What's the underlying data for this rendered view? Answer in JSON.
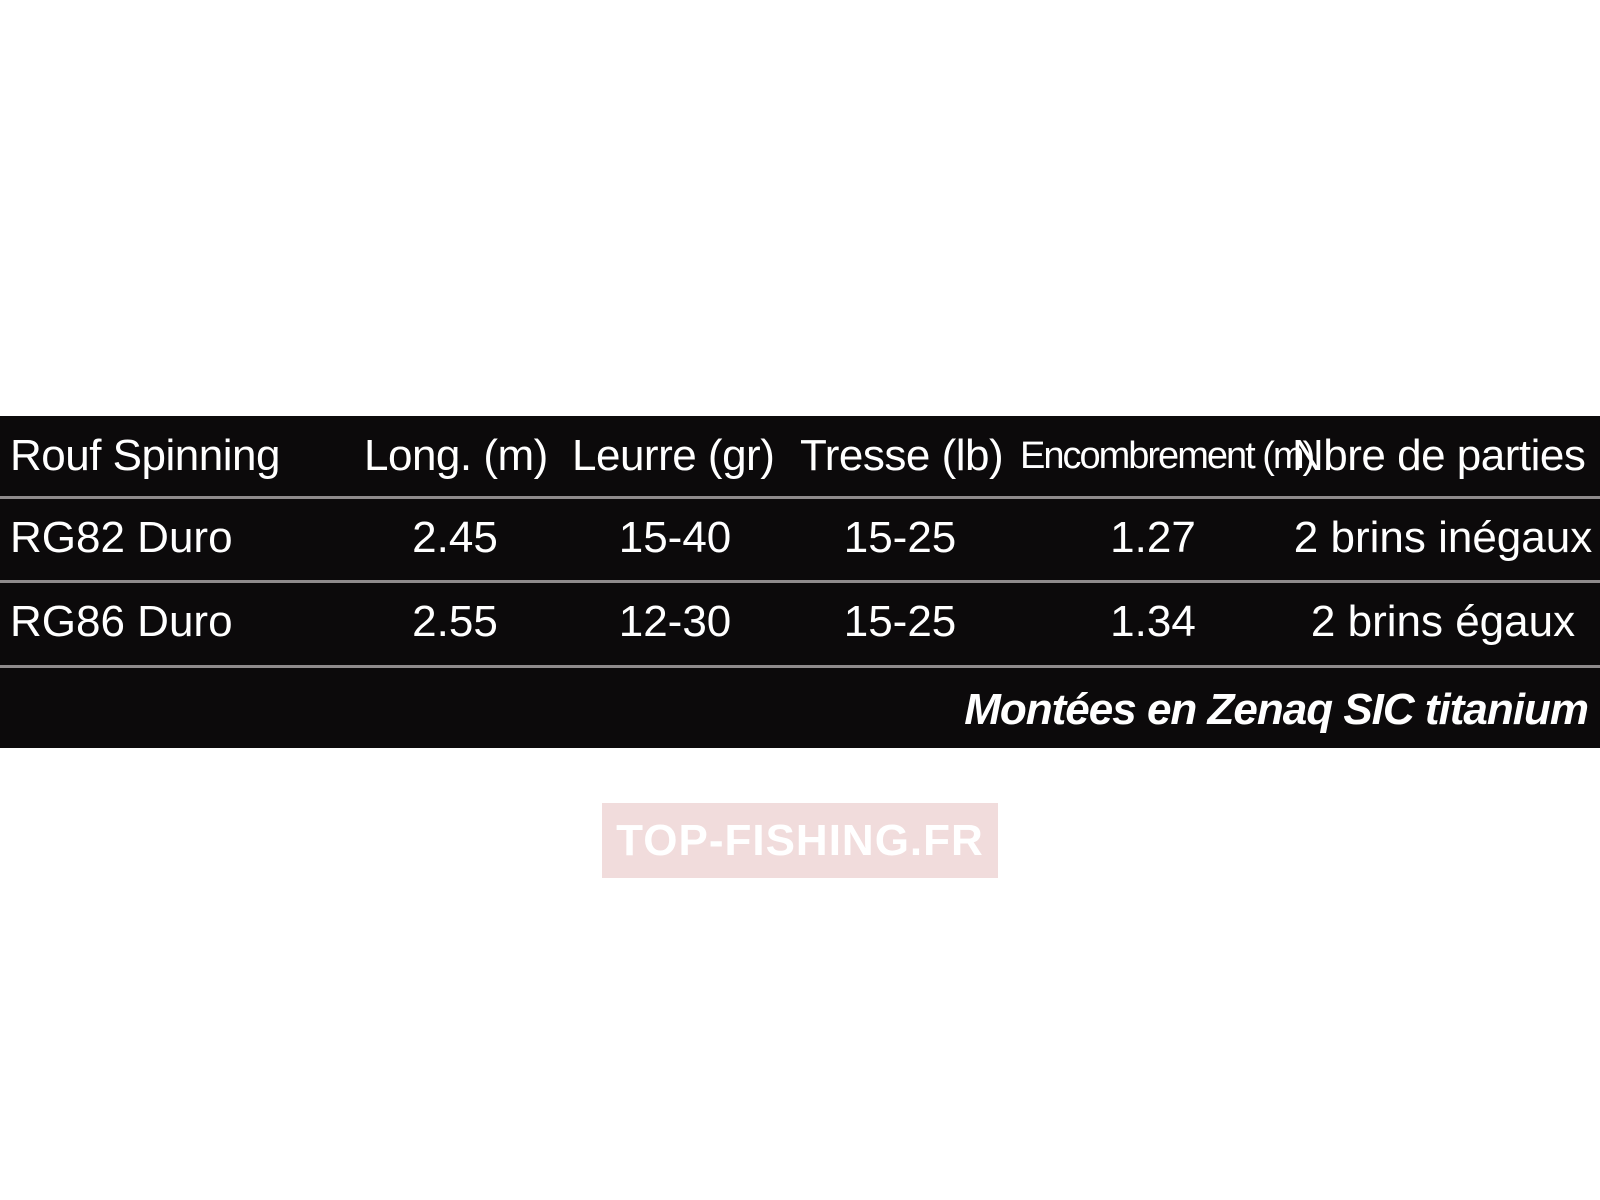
{
  "table": {
    "headers": {
      "name": "Rouf Spinning",
      "long": "Long. (m)",
      "leurre": "Leurre (gr)",
      "tresse": "Tresse (lb)",
      "encombrement": "Encombrement (m)",
      "parties": "Nbre de parties"
    },
    "rows": [
      {
        "name": "RG82 Duro",
        "long": "2.45",
        "leurre": "15-40",
        "tresse": "15-25",
        "encombrement": "1.27",
        "parties": "2 brins inégaux"
      },
      {
        "name": "RG86 Duro",
        "long": "2.55",
        "leurre": "12-30",
        "tresse": "15-25",
        "encombrement": "1.34",
        "parties": "2 brins égaux"
      }
    ],
    "note": "Montées en Zenaq SIC titanium"
  },
  "watermark": {
    "text": "TOP-FISHING.FR"
  },
  "colors": {
    "table_background": "#0c0a0b",
    "separator": "#8f8b8c",
    "watermark_background": "#f1dcdc"
  }
}
